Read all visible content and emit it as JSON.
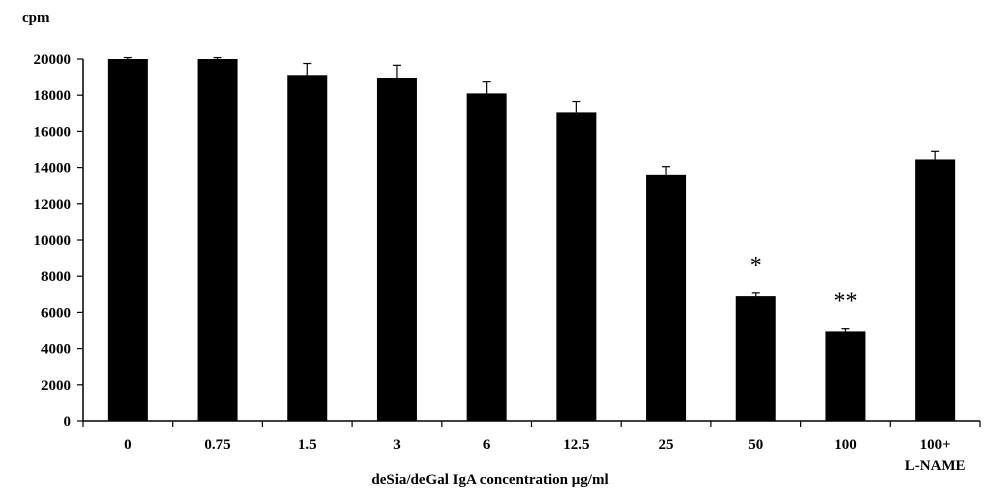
{
  "chart_data": {
    "type": "bar",
    "ylabel": "cpm",
    "xlabel": "deSia/deGal  IgA concentration μg/ml",
    "ylim": [
      0,
      20000
    ],
    "yticks": [
      0,
      2000,
      4000,
      6000,
      8000,
      10000,
      12000,
      14000,
      16000,
      18000,
      20000
    ],
    "grid": false,
    "categories": [
      {
        "label": "0",
        "label2": ""
      },
      {
        "label": "0.75",
        "label2": ""
      },
      {
        "label": "1.5",
        "label2": ""
      },
      {
        "label": "3",
        "label2": ""
      },
      {
        "label": "6",
        "label2": ""
      },
      {
        "label": "12.5",
        "label2": ""
      },
      {
        "label": "25",
        "label2": ""
      },
      {
        "label": "50",
        "label2": ""
      },
      {
        "label": "100",
        "label2": ""
      },
      {
        "label": "100+",
        "label2": "L-NAME"
      }
    ],
    "values": [
      20000,
      20000,
      19100,
      18950,
      18100,
      17050,
      13600,
      6900,
      4950,
      14450
    ],
    "errors": [
      80,
      80,
      650,
      700,
      650,
      600,
      450,
      180,
      150,
      450
    ],
    "annotations": [
      "",
      "",
      "",
      "",
      "",
      "",
      "",
      "*",
      "**",
      ""
    ],
    "bar_color": "#000000"
  }
}
